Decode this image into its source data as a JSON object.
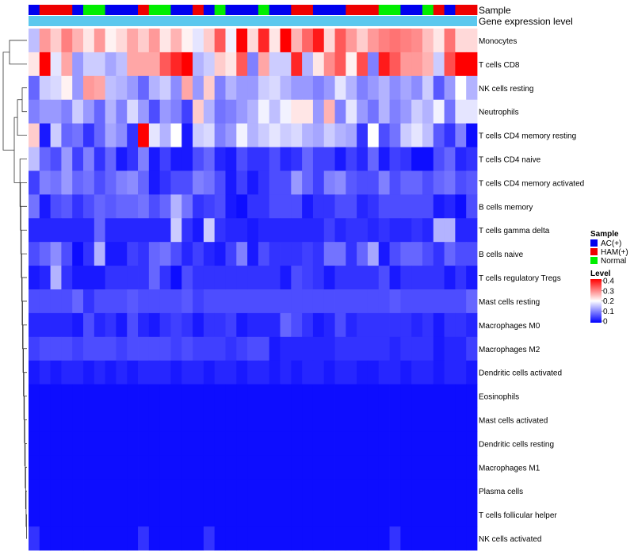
{
  "chart_data": {
    "type": "heatmap",
    "title": "",
    "annotation_labels": [
      "Sample",
      "Gene expression level"
    ],
    "rows": [
      "Monocytes",
      "T cells CD8",
      "NK cells resting",
      "Neutrophils",
      "T cells CD4 memory resting",
      "T cells CD4 naive",
      "T cells CD4 memory activated",
      "B cells memory",
      "T cells gamma delta",
      "B cells naive",
      "T cells regulatory  Tregs",
      "Mast cells resting",
      "Macrophages M0",
      "Macrophages M2",
      "Dendritic cells activated",
      "Eosinophils",
      "Mast cells activated",
      "Dendritic cells resting",
      "Macrophages M1",
      "Plasma cells",
      "T cells follicular helper",
      "NK cells activated"
    ],
    "sample_groups": [
      "AC",
      "HAM",
      "HAM",
      "HAM",
      "AC",
      "Normal",
      "Normal",
      "AC",
      "AC",
      "AC",
      "HAM",
      "Normal",
      "Normal",
      "AC",
      "AC",
      "HAM",
      "AC",
      "Normal",
      "AC",
      "AC",
      "AC",
      "Normal",
      "AC",
      "AC",
      "HAM",
      "HAM",
      "AC",
      "AC",
      "AC",
      "HAM",
      "HAM",
      "HAM",
      "Normal",
      "Normal",
      "AC",
      "AC",
      "Normal",
      "HAM",
      "AC",
      "HAM",
      "HAM"
    ],
    "expression_bar_color": "#5bc8ee",
    "values": [
      [
        0.15,
        0.28,
        0.24,
        0.3,
        0.26,
        0.22,
        0.28,
        0.21,
        0.23,
        0.27,
        0.24,
        0.28,
        0.22,
        0.26,
        0.21,
        0.18,
        0.24,
        0.33,
        0.19,
        0.4,
        0.23,
        0.37,
        0.22,
        0.4,
        0.26,
        0.32,
        0.38,
        0.23,
        0.33,
        0.28,
        0.24,
        0.28,
        0.3,
        0.31,
        0.3,
        0.29,
        0.25,
        0.22,
        0.31,
        0.23,
        0.23
      ],
      [
        0.22,
        0.4,
        0.18,
        0.27,
        0.12,
        0.16,
        0.16,
        0.13,
        0.15,
        0.27,
        0.27,
        0.27,
        0.33,
        0.37,
        0.4,
        0.14,
        0.16,
        0.24,
        0.22,
        0.33,
        0.1,
        0.27,
        0.16,
        0.16,
        0.37,
        0.14,
        0.22,
        0.29,
        0.33,
        0.21,
        0.34,
        0.1,
        0.38,
        0.33,
        0.28,
        0.28,
        0.26,
        0.16,
        0.34,
        0.4,
        0.4
      ],
      [
        0.08,
        0.16,
        0.17,
        0.21,
        0.12,
        0.28,
        0.27,
        0.15,
        0.14,
        0.12,
        0.08,
        0.14,
        0.16,
        0.11,
        0.27,
        0.12,
        0.24,
        0.1,
        0.14,
        0.12,
        0.12,
        0.16,
        0.17,
        0.14,
        0.12,
        0.12,
        0.1,
        0.12,
        0.18,
        0.14,
        0.1,
        0.12,
        0.14,
        0.11,
        0.13,
        0.11,
        0.16,
        0.07,
        0.12,
        0.2,
        0.14
      ],
      [
        0.1,
        0.12,
        0.12,
        0.1,
        0.16,
        0.12,
        0.08,
        0.14,
        0.1,
        0.17,
        0.12,
        0.06,
        0.12,
        0.1,
        0.05,
        0.24,
        0.14,
        0.09,
        0.1,
        0.12,
        0.14,
        0.19,
        0.15,
        0.19,
        0.22,
        0.22,
        0.12,
        0.26,
        0.1,
        0.18,
        0.12,
        0.09,
        0.14,
        0.1,
        0.12,
        0.16,
        0.14,
        0.19,
        0.09,
        0.18,
        0.18
      ],
      [
        0.24,
        0.02,
        0.16,
        0.08,
        0.09,
        0.04,
        0.08,
        0.13,
        0.11,
        0.04,
        0.4,
        0.18,
        0.14,
        0.2,
        0.02,
        0.16,
        0.17,
        0.1,
        0.12,
        0.19,
        0.14,
        0.16,
        0.18,
        0.16,
        0.17,
        0.14,
        0.13,
        0.16,
        0.14,
        0.13,
        0.04,
        0.2,
        0.06,
        0.09,
        0.16,
        0.18,
        0.15,
        0.07,
        0.04,
        0.1,
        0.01
      ],
      [
        0.15,
        0.08,
        0.06,
        0.12,
        0.05,
        0.1,
        0.04,
        0.08,
        0.02,
        0.04,
        0.1,
        0.02,
        0.05,
        0.02,
        0.02,
        0.06,
        0.08,
        0.03,
        0.02,
        0.06,
        0.04,
        0.04,
        0.06,
        0.03,
        0.04,
        0.08,
        0.05,
        0.05,
        0.02,
        0.05,
        0.03,
        0.08,
        0.02,
        0.05,
        0.04,
        0.01,
        0.01,
        0.06,
        0.08,
        0.03,
        0.04
      ],
      [
        0.05,
        0.1,
        0.09,
        0.12,
        0.08,
        0.09,
        0.06,
        0.08,
        0.1,
        0.11,
        0.08,
        0.02,
        0.04,
        0.06,
        0.06,
        0.1,
        0.09,
        0.06,
        0.02,
        0.05,
        0.02,
        0.04,
        0.06,
        0.06,
        0.12,
        0.08,
        0.05,
        0.1,
        0.11,
        0.07,
        0.06,
        0.06,
        0.1,
        0.06,
        0.08,
        0.08,
        0.06,
        0.08,
        0.09,
        0.06,
        0.07
      ],
      [
        0.09,
        0.02,
        0.06,
        0.07,
        0.04,
        0.06,
        0.08,
        0.07,
        0.08,
        0.08,
        0.09,
        0.06,
        0.08,
        0.14,
        0.09,
        0.04,
        0.05,
        0.06,
        0.02,
        0.01,
        0.04,
        0.04,
        0.06,
        0.06,
        0.06,
        0.02,
        0.04,
        0.04,
        0.06,
        0.06,
        0.03,
        0.04,
        0.06,
        0.06,
        0.06,
        0.06,
        0.06,
        0.02,
        0.03,
        0.01,
        0.06
      ],
      [
        0.03,
        0.03,
        0.03,
        0.03,
        0.03,
        0.03,
        0.08,
        0.03,
        0.03,
        0.03,
        0.03,
        0.03,
        0.03,
        0.16,
        0.04,
        0.02,
        0.16,
        0.04,
        0.03,
        0.03,
        0.02,
        0.03,
        0.03,
        0.03,
        0.03,
        0.03,
        0.03,
        0.05,
        0.03,
        0.04,
        0.04,
        0.03,
        0.04,
        0.03,
        0.03,
        0.04,
        0.03,
        0.14,
        0.14,
        0.03,
        0.03
      ],
      [
        0.06,
        0.08,
        0.11,
        0.06,
        0.01,
        0.04,
        0.14,
        0.02,
        0.02,
        0.05,
        0.04,
        0.08,
        0.09,
        0.06,
        0.03,
        0.05,
        0.03,
        0.02,
        0.05,
        0.1,
        0.02,
        0.06,
        0.04,
        0.04,
        0.04,
        0.05,
        0.04,
        0.09,
        0.09,
        0.04,
        0.08,
        0.13,
        0.02,
        0.06,
        0.08,
        0.08,
        0.06,
        0.04,
        0.08,
        0.06,
        0.06
      ],
      [
        0.02,
        0.03,
        0.14,
        0.04,
        0.02,
        0.02,
        0.02,
        0.04,
        0.04,
        0.04,
        0.04,
        0.08,
        0.04,
        0.01,
        0.06,
        0.04,
        0.04,
        0.04,
        0.04,
        0.04,
        0.04,
        0.04,
        0.04,
        0.02,
        0.06,
        0.05,
        0.04,
        0.02,
        0.04,
        0.04,
        0.04,
        0.04,
        0.06,
        0.02,
        0.04,
        0.04,
        0.04,
        0.04,
        0.02,
        0.04,
        0.02
      ],
      [
        0.06,
        0.06,
        0.06,
        0.06,
        0.08,
        0.04,
        0.06,
        0.06,
        0.06,
        0.07,
        0.06,
        0.06,
        0.06,
        0.06,
        0.07,
        0.05,
        0.06,
        0.06,
        0.06,
        0.06,
        0.06,
        0.06,
        0.06,
        0.06,
        0.06,
        0.06,
        0.06,
        0.06,
        0.06,
        0.06,
        0.06,
        0.06,
        0.06,
        0.07,
        0.06,
        0.06,
        0.06,
        0.06,
        0.06,
        0.06,
        0.08
      ],
      [
        0.03,
        0.03,
        0.03,
        0.03,
        0.02,
        0.06,
        0.03,
        0.04,
        0.02,
        0.06,
        0.03,
        0.02,
        0.04,
        0.05,
        0.04,
        0.02,
        0.04,
        0.04,
        0.05,
        0.02,
        0.03,
        0.03,
        0.03,
        0.08,
        0.06,
        0.04,
        0.02,
        0.03,
        0.06,
        0.03,
        0.04,
        0.04,
        0.04,
        0.04,
        0.04,
        0.03,
        0.04,
        0.02,
        0.04,
        0.04,
        0.03
      ],
      [
        0.05,
        0.06,
        0.06,
        0.06,
        0.05,
        0.06,
        0.06,
        0.06,
        0.05,
        0.06,
        0.06,
        0.06,
        0.06,
        0.05,
        0.06,
        0.05,
        0.05,
        0.05,
        0.04,
        0.05,
        0.06,
        0.06,
        0.02,
        0.03,
        0.03,
        0.03,
        0.03,
        0.03,
        0.04,
        0.04,
        0.04,
        0.04,
        0.04,
        0.03,
        0.04,
        0.04,
        0.04,
        0.02,
        0.03,
        0.03,
        0.05
      ],
      [
        0.02,
        0.03,
        0.02,
        0.03,
        0.03,
        0.02,
        0.03,
        0.02,
        0.03,
        0.02,
        0.03,
        0.03,
        0.03,
        0.02,
        0.03,
        0.03,
        0.02,
        0.03,
        0.03,
        0.02,
        0.03,
        0.03,
        0.02,
        0.03,
        0.02,
        0.03,
        0.03,
        0.02,
        0.03,
        0.03,
        0.02,
        0.02,
        0.03,
        0.03,
        0.02,
        0.03,
        0.03,
        0.02,
        0.03,
        0.03,
        0.02
      ],
      [
        0.01,
        0.01,
        0.01,
        0.01,
        0.01,
        0.01,
        0.01,
        0.01,
        0.01,
        0.01,
        0.01,
        0.01,
        0.01,
        0.01,
        0.01,
        0.01,
        0.01,
        0.01,
        0.01,
        0.01,
        0.01,
        0.01,
        0.01,
        0.01,
        0.01,
        0.01,
        0.01,
        0.01,
        0.01,
        0.01,
        0.01,
        0.01,
        0.01,
        0.01,
        0.01,
        0.01,
        0.01,
        0.01,
        0.01,
        0.01,
        0.01
      ],
      [
        0.01,
        0.01,
        0.01,
        0.01,
        0.01,
        0.01,
        0.01,
        0.01,
        0.01,
        0.01,
        0.01,
        0.01,
        0.01,
        0.01,
        0.01,
        0.01,
        0.01,
        0.01,
        0.01,
        0.01,
        0.01,
        0.01,
        0.01,
        0.01,
        0.01,
        0.01,
        0.01,
        0.01,
        0.01,
        0.01,
        0.01,
        0.01,
        0.01,
        0.01,
        0.01,
        0.01,
        0.01,
        0.01,
        0.01,
        0.01,
        0.01
      ],
      [
        0.01,
        0.01,
        0.01,
        0.01,
        0.01,
        0.01,
        0.01,
        0.01,
        0.01,
        0.01,
        0.01,
        0.01,
        0.01,
        0.01,
        0.01,
        0.01,
        0.01,
        0.01,
        0.01,
        0.01,
        0.01,
        0.01,
        0.01,
        0.01,
        0.01,
        0.01,
        0.01,
        0.01,
        0.01,
        0.01,
        0.01,
        0.01,
        0.01,
        0.01,
        0.01,
        0.01,
        0.01,
        0.01,
        0.01,
        0.01,
        0.01
      ],
      [
        0.01,
        0.01,
        0.01,
        0.01,
        0.01,
        0.01,
        0.01,
        0.01,
        0.01,
        0.01,
        0.01,
        0.01,
        0.01,
        0.01,
        0.01,
        0.01,
        0.01,
        0.01,
        0.01,
        0.01,
        0.01,
        0.01,
        0.01,
        0.01,
        0.01,
        0.01,
        0.01,
        0.01,
        0.01,
        0.01,
        0.01,
        0.01,
        0.01,
        0.01,
        0.01,
        0.01,
        0.01,
        0.01,
        0.01,
        0.01,
        0.01
      ],
      [
        0.01,
        0.01,
        0.01,
        0.01,
        0.01,
        0.01,
        0.01,
        0.01,
        0.01,
        0.01,
        0.01,
        0.01,
        0.01,
        0.01,
        0.01,
        0.01,
        0.01,
        0.01,
        0.01,
        0.01,
        0.01,
        0.01,
        0.01,
        0.01,
        0.01,
        0.01,
        0.01,
        0.01,
        0.01,
        0.01,
        0.01,
        0.01,
        0.01,
        0.01,
        0.01,
        0.01,
        0.01,
        0.01,
        0.01,
        0.01,
        0.01
      ],
      [
        0.01,
        0.01,
        0.01,
        0.01,
        0.01,
        0.01,
        0.01,
        0.01,
        0.01,
        0.01,
        0.01,
        0.01,
        0.01,
        0.01,
        0.01,
        0.01,
        0.01,
        0.01,
        0.01,
        0.01,
        0.01,
        0.01,
        0.01,
        0.01,
        0.01,
        0.01,
        0.01,
        0.01,
        0.01,
        0.01,
        0.01,
        0.01,
        0.01,
        0.01,
        0.01,
        0.01,
        0.01,
        0.01,
        0.01,
        0.01,
        0.01
      ],
      [
        0.04,
        0.01,
        0.01,
        0.01,
        0.01,
        0.01,
        0.01,
        0.01,
        0.01,
        0.01,
        0.04,
        0.01,
        0.01,
        0.01,
        0.01,
        0.01,
        0.04,
        0.01,
        0.01,
        0.01,
        0.01,
        0.01,
        0.01,
        0.01,
        0.01,
        0.01,
        0.01,
        0.01,
        0.01,
        0.01,
        0.01,
        0.01,
        0.01,
        0.04,
        0.01,
        0.01,
        0.01,
        0.01,
        0.01,
        0.01,
        0.01
      ]
    ],
    "legend": {
      "sample_title": "Sample",
      "sample_entries": [
        {
          "label": "AC(+)",
          "color": "#0000ee"
        },
        {
          "label": "HAM(+)",
          "color": "#ee0000"
        },
        {
          "label": "Normal",
          "color": "#00ee00"
        }
      ],
      "level_title": "Level",
      "level_ticks": [
        "0.4",
        "0.3",
        "0.2",
        "0.1",
        "0"
      ],
      "level_range": [
        0,
        0.4
      ],
      "placement": "right"
    },
    "colors": {
      "low": "#0000ff",
      "mid": "#ffffff",
      "high": "#ff0000"
    }
  }
}
